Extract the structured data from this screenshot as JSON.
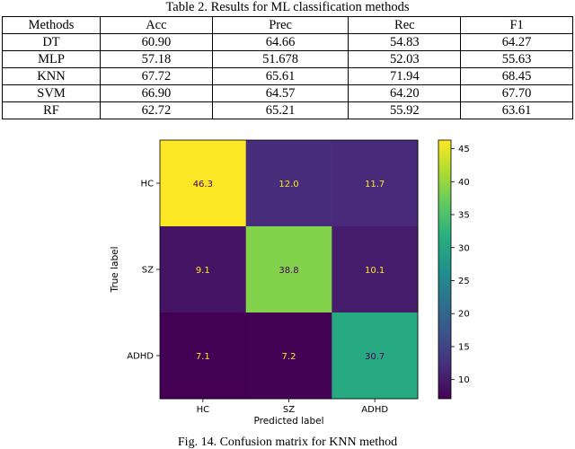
{
  "table": {
    "caption": "Table 2. Results for ML classification methods",
    "headers": [
      "Methods",
      "Acc",
      "Prec",
      "Rec",
      "F1"
    ],
    "rows": [
      [
        "DT",
        "60.90",
        "64.66",
        "54.83",
        "64.27"
      ],
      [
        "MLP",
        "57.18",
        "51.678",
        "52.03",
        "55.63"
      ],
      [
        "KNN",
        "67.72",
        "65.61",
        "71.94",
        "68.45"
      ],
      [
        "SVM",
        "66.90",
        "64.57",
        "64.20",
        "67.70"
      ],
      [
        "RF",
        "62.72",
        "65.21",
        "55.92",
        "63.61"
      ]
    ]
  },
  "chart_data": {
    "type": "heatmap",
    "x_categories": [
      "HC",
      "SZ",
      "ADHD"
    ],
    "y_categories": [
      "HC",
      "SZ",
      "ADHD"
    ],
    "values": [
      [
        46.3,
        12.0,
        11.7
      ],
      [
        9.1,
        38.8,
        10.1
      ],
      [
        7.1,
        7.2,
        30.7
      ]
    ],
    "value_labels": [
      [
        "46.3",
        "12.0",
        "11.7"
      ],
      [
        "9.1",
        "38.8",
        "10.1"
      ],
      [
        "7.1",
        "7.2",
        "30.7"
      ]
    ],
    "xlabel": "Predicted label",
    "ylabel": "True label",
    "colormap": "viridis",
    "colorbar": {
      "range": [
        7.1,
        46.3
      ],
      "ticks": [
        10,
        15,
        20,
        25,
        30,
        35,
        40,
        45
      ],
      "tick_labels": [
        "10",
        "15",
        "20",
        "25",
        "30",
        "35",
        "40",
        "45"
      ]
    }
  },
  "figure_caption": "Fig. 14. Confusion matrix for KNN method"
}
